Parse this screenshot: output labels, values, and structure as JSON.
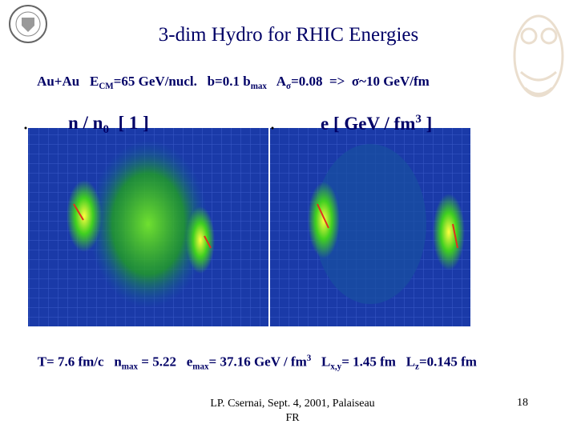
{
  "header": {
    "title": "3-dim Hydro for RHIC Energies",
    "parameters": [
      "Au+Au   E",
      "CM",
      "=65 GeV/nucl.   b=0.1 b",
      "max",
      "   A",
      "σ",
      "=0.08  =>  σ~10 GeV/fm"
    ]
  },
  "panels": [
    {
      "label": [
        "n / n",
        "0",
        "  [ 1 ]"
      ]
    },
    {
      "label": [
        "e [ GeV / fm",
        "3",
        " ]"
      ]
    }
  ],
  "results": [
    "T= 7.6 fm/c   n",
    "max",
    " = 5.22   e",
    "max",
    "= 37.16 GeV / fm",
    "3",
    "   L",
    "x,y",
    "= 1.45 fm   L",
    "z",
    "=0.145 fm"
  ],
  "footer": {
    "citation": [
      "LP. Csernai, Sept. 4, 2001, Palaiseau",
      "FR"
    ],
    "page": "18"
  }
}
